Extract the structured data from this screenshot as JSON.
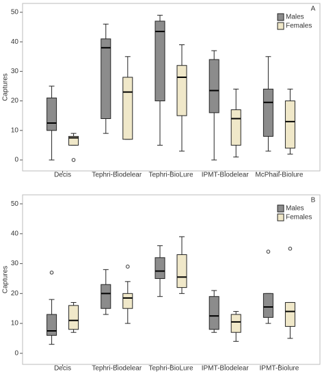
{
  "chart_data": [
    {
      "type": "box",
      "title": "A",
      "ylabel": "Captures",
      "categories": [
        "Decis",
        "Tephri-Biodelear",
        "Tephri-BioLure",
        "IPMT-Biodelear",
        "McPhail-Biolure"
      ],
      "series": [
        {
          "name": "Males",
          "color": "#8c8c8c",
          "values": [
            {
              "min": 0,
              "q1": 10,
              "median": 12.5,
              "q3": 21,
              "max": 25
            },
            {
              "min": 9,
              "q1": 14,
              "median": 38,
              "q3": 41,
              "max": 46
            },
            {
              "min": 5,
              "q1": 20,
              "median": 43.5,
              "q3": 47,
              "max": 49
            },
            {
              "min": 0,
              "q1": 16,
              "median": 23.5,
              "q3": 34,
              "max": 37
            },
            {
              "min": 3,
              "q1": 8,
              "median": 19.5,
              "q3": 24,
              "max": 35
            }
          ]
        },
        {
          "name": "Females",
          "color": "#f0e8c9",
          "values": [
            {
              "min": 5,
              "q1": 5,
              "median": 7.5,
              "q3": 8,
              "max": 9,
              "outliers": [
                0
              ]
            },
            {
              "min": 7,
              "q1": 7,
              "median": 23,
              "q3": 28,
              "max": 35
            },
            {
              "min": 3,
              "q1": 15,
              "median": 28,
              "q3": 32,
              "max": 39
            },
            {
              "min": 1,
              "q1": 5,
              "median": 14,
              "q3": 17,
              "max": 24
            },
            {
              "min": 2,
              "q1": 4,
              "median": 13,
              "q3": 20,
              "max": 24
            }
          ]
        }
      ],
      "ylim": [
        -3.7,
        53
      ],
      "yticks": [
        0,
        10,
        20,
        30,
        40,
        50
      ],
      "legend": "top-right"
    },
    {
      "type": "box",
      "title": "B",
      "ylabel": "Captures",
      "categories": [
        "Decis",
        "Tephri-Biodelear",
        "Tephri-BioLure",
        "IPMT-Biodelear",
        "IPMT-Biolure"
      ],
      "series": [
        {
          "name": "Males",
          "color": "#8c8c8c",
          "values": [
            {
              "min": 3,
              "q1": 6,
              "median": 7.5,
              "q3": 13,
              "max": 18,
              "outliers": [
                27
              ]
            },
            {
              "min": 13,
              "q1": 15,
              "median": 20,
              "q3": 23,
              "max": 28
            },
            {
              "min": 19,
              "q1": 25,
              "median": 27.5,
              "q3": 32,
              "max": 36
            },
            {
              "min": 7,
              "q1": 8,
              "median": 12.5,
              "q3": 19,
              "max": 21
            },
            {
              "min": 10,
              "q1": 12,
              "median": 15.5,
              "q3": 20,
              "max": 20,
              "outliers": [
                34
              ]
            }
          ]
        },
        {
          "name": "Females",
          "color": "#f0e8c9",
          "values": [
            {
              "min": 7,
              "q1": 8,
              "median": 11,
              "q3": 16,
              "max": 17
            },
            {
              "min": 10,
              "q1": 15,
              "median": 18.5,
              "q3": 20,
              "max": 24,
              "outliers": [
                29
              ]
            },
            {
              "min": 20,
              "q1": 22,
              "median": 25.5,
              "q3": 33,
              "max": 39
            },
            {
              "min": 4,
              "q1": 7,
              "median": 10.5,
              "q3": 13,
              "max": 14
            },
            {
              "min": 5,
              "q1": 9,
              "median": 14,
              "q3": 17,
              "max": 17,
              "outliers": [
                35
              ]
            }
          ]
        }
      ],
      "ylim": [
        -3.7,
        53
      ],
      "yticks": [
        0,
        10,
        20,
        30,
        40,
        50
      ],
      "legend": "top-right"
    }
  ]
}
